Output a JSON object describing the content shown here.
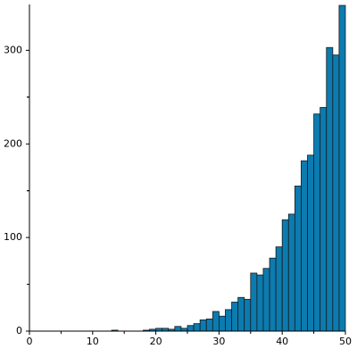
{
  "chart_data": {
    "type": "histogram",
    "bins": [
      0,
      1,
      2,
      3,
      4,
      5,
      6,
      7,
      8,
      9,
      10,
      11,
      12,
      13,
      14,
      15,
      16,
      17,
      18,
      19,
      20,
      21,
      22,
      23,
      24,
      25,
      26,
      27,
      28,
      29,
      30,
      31,
      32,
      33,
      34,
      35,
      36,
      37,
      38,
      39,
      40,
      41,
      42,
      43,
      44,
      45,
      46,
      47,
      48,
      49,
      50
    ],
    "values": [
      0,
      0,
      0,
      0,
      0,
      0,
      0,
      0,
      0,
      0,
      0,
      0,
      0,
      1,
      0,
      0,
      0,
      0,
      1,
      2,
      3,
      3,
      2,
      5,
      3,
      6,
      8,
      12,
      13,
      21,
      16,
      23,
      31,
      36,
      34,
      62,
      60,
      67,
      78,
      90,
      119,
      125,
      155,
      182,
      188,
      232,
      239,
      303,
      295,
      348
    ],
    "color": "#0b7bb0",
    "xlim": [
      0,
      50
    ],
    "xticks": [
      0,
      10,
      20,
      30,
      40,
      50
    ],
    "ylim": [
      0,
      349
    ],
    "yticks": [
      0,
      100,
      200,
      300
    ]
  }
}
